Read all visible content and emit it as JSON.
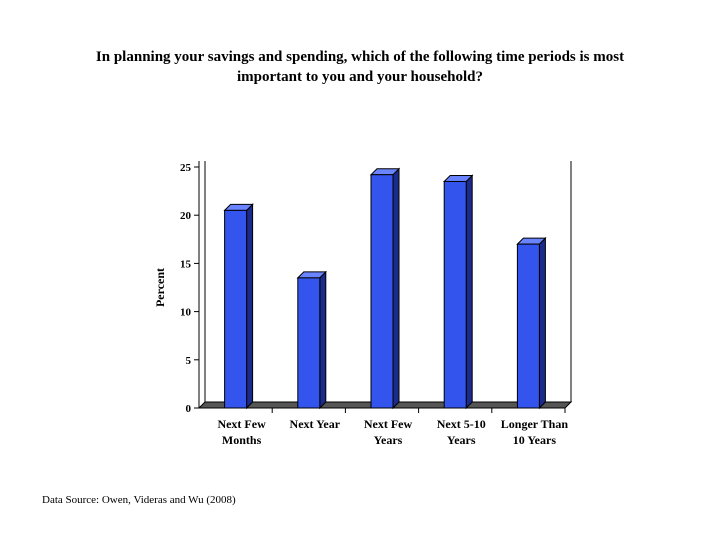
{
  "page": {
    "title_line1": "In planning your savings and spending, which of the following time periods is most",
    "title_line2": "important to you and your household?",
    "source": "Data Source: Owen, Videras and Wu (2008)"
  },
  "chart_data": {
    "type": "bar",
    "title": "In planning your savings and spending, which of the following time periods is most important to you and your household?",
    "categories": [
      [
        "Next Few",
        "Months"
      ],
      [
        "Next Year"
      ],
      [
        "Next Few",
        "Years"
      ],
      [
        "Next 5-10",
        "Years"
      ],
      [
        "Longer Than",
        "10 Years"
      ]
    ],
    "values": [
      20.5,
      13.5,
      24.2,
      23.5,
      17
    ],
    "xlabel": "",
    "ylabel": "Percent",
    "ylim": [
      0,
      25
    ],
    "yticks": [
      0,
      5,
      10,
      15,
      20,
      25
    ],
    "grid": false,
    "legend": "none",
    "colors": {
      "bar_front": "#3355ee",
      "bar_side": "#1a2b8c",
      "bar_top": "#6a84ff",
      "floor": "#555555",
      "outline": "#000000"
    }
  }
}
